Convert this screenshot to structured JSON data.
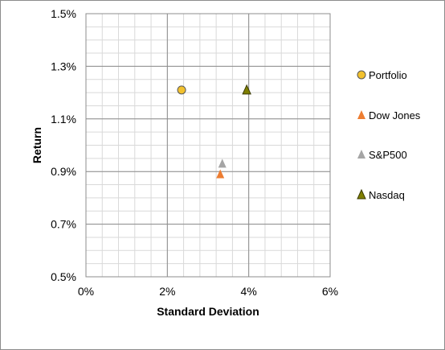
{
  "chart_data": {
    "type": "scatter",
    "xlabel": "Standard Deviation",
    "ylabel": "Return",
    "xlim": [
      0,
      6
    ],
    "ylim": [
      0.5,
      1.5
    ],
    "x_ticks": [
      "0%",
      "2%",
      "4%",
      "6%"
    ],
    "x_tick_values": [
      0,
      2,
      4,
      6
    ],
    "y_ticks": [
      "1.5%",
      "1.3%",
      "1.1%",
      "0.9%",
      "0.7%",
      "0.5%"
    ],
    "y_tick_values": [
      1.5,
      1.3,
      1.1,
      0.9,
      0.7,
      0.5
    ],
    "x_minor_step": 0.4,
    "y_minor_step": 0.05,
    "grid": true,
    "legend": "right",
    "series": [
      {
        "name": "Portfolio",
        "marker": "circle",
        "color": "#f2c12e",
        "x": 2.35,
        "y": 1.21
      },
      {
        "name": "Dow Jones",
        "marker": "triangle",
        "color": "#ed7d31",
        "x": 3.3,
        "y": 0.89
      },
      {
        "name": "S&P500",
        "marker": "triangle",
        "color": "#a5a5a5",
        "x": 3.35,
        "y": 0.93
      },
      {
        "name": "Nasdaq",
        "marker": "triangle",
        "color": "#7f7f00",
        "x": 3.95,
        "y": 1.21
      }
    ]
  }
}
